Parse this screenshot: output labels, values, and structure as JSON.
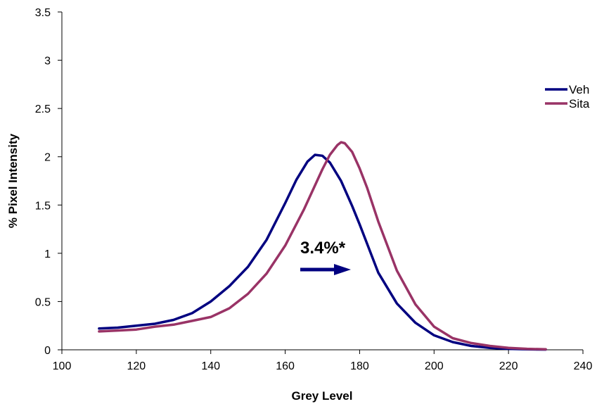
{
  "chart_data": {
    "type": "line",
    "title": "",
    "xlabel": "Grey Level",
    "ylabel": "% Pixel Intensity",
    "xlim": [
      100,
      240
    ],
    "ylim": [
      0,
      3.5
    ],
    "x_ticks": [
      "100",
      "120",
      "140",
      "160",
      "180",
      "200",
      "220",
      "240"
    ],
    "y_ticks": [
      "0",
      "0.5",
      "1",
      "1.5",
      "2",
      "2.5",
      "3",
      "3.5"
    ],
    "grid": false,
    "legend_position": "right",
    "annotation": {
      "text": "3.4%*",
      "arrow": "right",
      "color": "#000080"
    },
    "series": [
      {
        "name": "Veh",
        "color": "#000080",
        "x": [
          110,
          115,
          120,
          125,
          130,
          135,
          140,
          145,
          150,
          155,
          160,
          163,
          166,
          168,
          170,
          172,
          175,
          178,
          180,
          182,
          185,
          190,
          195,
          200,
          205,
          210,
          215,
          220,
          225,
          230
        ],
        "y": [
          0.22,
          0.23,
          0.25,
          0.27,
          0.31,
          0.38,
          0.5,
          0.66,
          0.86,
          1.14,
          1.52,
          1.76,
          1.95,
          2.02,
          2.01,
          1.94,
          1.75,
          1.49,
          1.3,
          1.1,
          0.8,
          0.48,
          0.28,
          0.15,
          0.08,
          0.04,
          0.02,
          0.01,
          0.005,
          0.003
        ]
      },
      {
        "name": "Sita",
        "color": "#993366",
        "x": [
          110,
          115,
          120,
          125,
          130,
          135,
          140,
          145,
          150,
          155,
          160,
          165,
          170,
          172,
          174,
          175,
          176,
          178,
          180,
          182,
          185,
          190,
          195,
          200,
          205,
          210,
          215,
          220,
          225,
          230
        ],
        "y": [
          0.19,
          0.2,
          0.21,
          0.24,
          0.26,
          0.3,
          0.34,
          0.43,
          0.58,
          0.79,
          1.08,
          1.45,
          1.87,
          2.02,
          2.12,
          2.15,
          2.14,
          2.05,
          1.88,
          1.68,
          1.33,
          0.82,
          0.47,
          0.24,
          0.12,
          0.07,
          0.04,
          0.02,
          0.01,
          0.005
        ]
      }
    ]
  }
}
